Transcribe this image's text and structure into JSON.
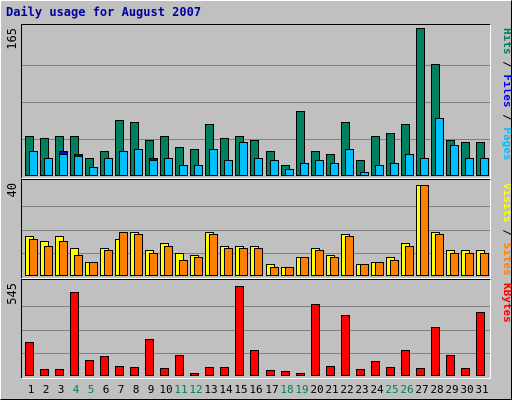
{
  "chart_data": {
    "title": "Daily usage for August 2007",
    "type": "bar",
    "days": [
      {
        "label": "1",
        "weekend": false
      },
      {
        "label": "2",
        "weekend": false
      },
      {
        "label": "3",
        "weekend": false
      },
      {
        "label": "4",
        "weekend": true
      },
      {
        "label": "5",
        "weekend": true
      },
      {
        "label": "6",
        "weekend": false
      },
      {
        "label": "7",
        "weekend": false
      },
      {
        "label": "8",
        "weekend": false
      },
      {
        "label": "9",
        "weekend": false
      },
      {
        "label": "10",
        "weekend": false
      },
      {
        "label": "11",
        "weekend": true
      },
      {
        "label": "12",
        "weekend": true
      },
      {
        "label": "13",
        "weekend": false
      },
      {
        "label": "14",
        "weekend": false
      },
      {
        "label": "15",
        "weekend": false
      },
      {
        "label": "16",
        "weekend": false
      },
      {
        "label": "17",
        "weekend": false
      },
      {
        "label": "18",
        "weekend": true
      },
      {
        "label": "19",
        "weekend": true
      },
      {
        "label": "20",
        "weekend": false
      },
      {
        "label": "21",
        "weekend": false
      },
      {
        "label": "22",
        "weekend": false
      },
      {
        "label": "23",
        "weekend": false
      },
      {
        "label": "24",
        "weekend": false
      },
      {
        "label": "25",
        "weekend": true
      },
      {
        "label": "26",
        "weekend": true
      },
      {
        "label": "27",
        "weekend": false
      },
      {
        "label": "28",
        "weekend": false
      },
      {
        "label": "29",
        "weekend": false
      },
      {
        "label": "30",
        "weekend": false
      },
      {
        "label": "31",
        "weekend": false
      }
    ],
    "panels": [
      {
        "id": "hits-files-pages",
        "ymax": "165",
        "max": 165,
        "legend": [
          {
            "text": "Pages",
            "color": "#00c0ff"
          },
          {
            "text": " / ",
            "color": "#000000"
          },
          {
            "text": "Files",
            "color": "#0000ff"
          },
          {
            "text": " / ",
            "color": "#000000"
          },
          {
            "text": "Hits",
            "color": "#008060"
          }
        ],
        "series": [
          {
            "name": "Hits",
            "color": "#008060",
            "offset": 0,
            "values": [
              45,
              42,
              45,
              45,
              20,
              28,
              62,
              60,
              40,
              45,
              32,
              30,
              58,
              42,
              45,
              40,
              28,
              12,
              72,
              28,
              25,
              60,
              18,
              45,
              48,
              58,
              165,
              125,
              40,
              38,
              38
            ]
          },
          {
            "name": "Files",
            "color": "#0000ff",
            "offset": 4,
            "values": [
              28,
              20,
              28,
              25,
              10,
              20,
              28,
              30,
              20,
              20,
              12,
              12,
              30,
              18,
              38,
              20,
              18,
              8,
              15,
              18,
              15,
              30,
              5,
              12,
              15,
              25,
              20,
              65,
              35,
              20,
              20
            ]
          },
          {
            "name": "Pages",
            "color": "#00c0ff",
            "offset": 4,
            "values": [
              28,
              20,
              25,
              22,
              10,
              20,
              28,
              30,
              18,
              20,
              12,
              12,
              30,
              18,
              38,
              20,
              18,
              8,
              15,
              18,
              15,
              30,
              5,
              12,
              15,
              25,
              20,
              65,
              35,
              20,
              20
            ]
          }
        ]
      },
      {
        "id": "visits-sites",
        "ymax": "40",
        "max": 40,
        "legend": [
          {
            "text": "Sites",
            "color": "#ff8000"
          },
          {
            "text": " / ",
            "color": "#000000"
          },
          {
            "text": "Visits",
            "color": "#ffff00"
          }
        ],
        "series": [
          {
            "name": "Visits",
            "color": "#ffff00",
            "offset": 0,
            "values": [
              17,
              15,
              17,
              12,
              6,
              12,
              16,
              19,
              11,
              14,
              10,
              9,
              19,
              13,
              13,
              13,
              5,
              4,
              8,
              12,
              9,
              18,
              5,
              6,
              8,
              14,
              39,
              19,
              11,
              11,
              11
            ]
          },
          {
            "name": "Sites",
            "color": "#ff8000",
            "offset": 4,
            "values": [
              16,
              13,
              15,
              9,
              6,
              11,
              19,
              18,
              10,
              13,
              7,
              8,
              18,
              12,
              12,
              12,
              4,
              4,
              8,
              11,
              8,
              17,
              5,
              6,
              7,
              13,
              39,
              18,
              10,
              10,
              10
            ]
          }
        ]
      },
      {
        "id": "kbytes",
        "ymax": "545",
        "max": 545,
        "legend": [
          {
            "text": "KBytes",
            "color": "#ff0000"
          }
        ],
        "series": [
          {
            "name": "KBytes",
            "color": "#ff0000",
            "offset": 0,
            "values": [
              200,
              40,
              40,
              490,
              95,
              120,
              60,
              55,
              215,
              45,
              125,
              20,
              55,
              55,
              530,
              150,
              35,
              28,
              15,
              420,
              60,
              360,
              40,
              85,
              55,
              150,
              45,
              285,
              125,
              45,
              375
            ]
          }
        ]
      }
    ]
  }
}
